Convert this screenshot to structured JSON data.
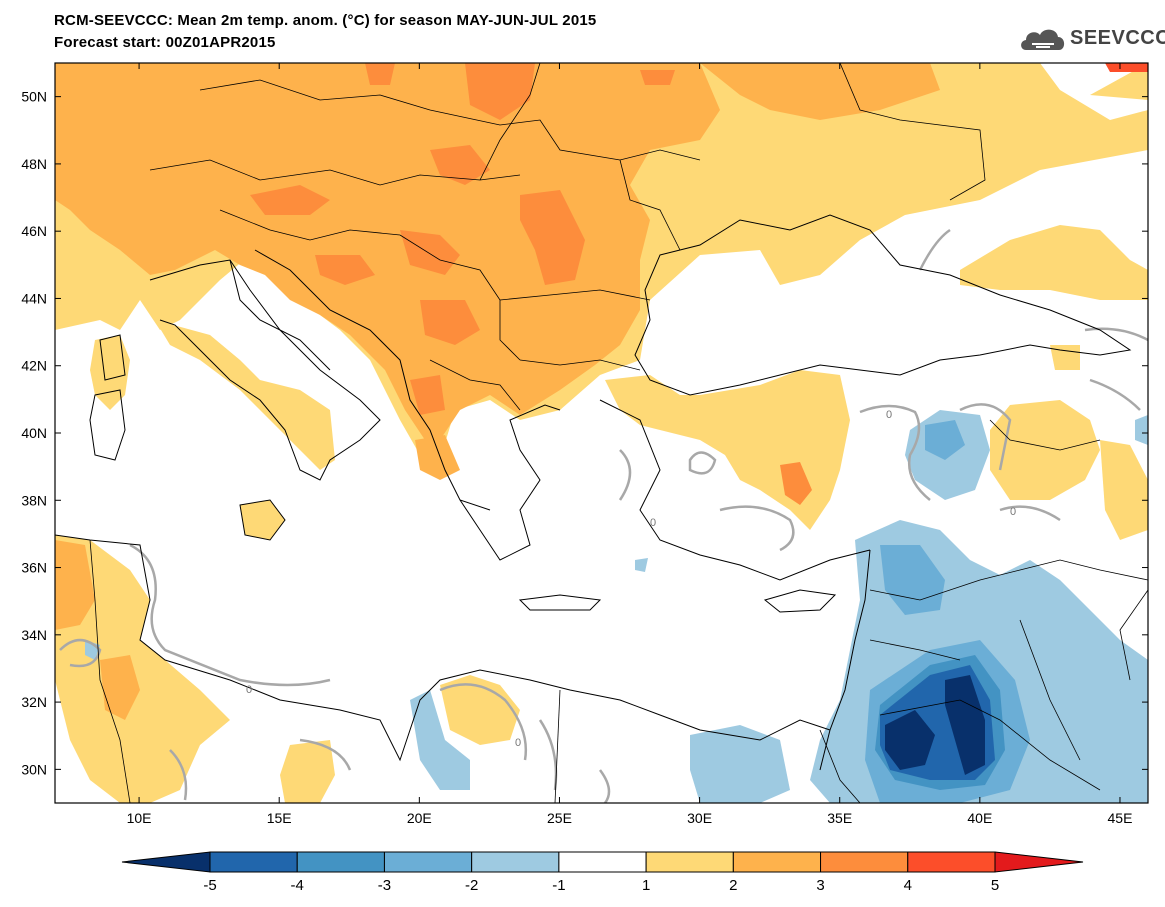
{
  "header": {
    "title_line1": "RCM-SEEVCCC: Mean 2m temp. anom. (°C) for season MAY-JUN-JUL 2015",
    "title_line2": "Forecast start: 00Z01APR2015"
  },
  "logo": {
    "text": "SEEVCCC",
    "icon": "cloud-icon"
  },
  "map": {
    "lon_range": [
      7,
      46
    ],
    "lat_range": [
      29,
      51
    ],
    "lon_ticks": [
      "10E",
      "15E",
      "20E",
      "25E",
      "30E",
      "35E",
      "40E",
      "45E"
    ],
    "lon_values": [
      10,
      15,
      20,
      25,
      30,
      35,
      40,
      45
    ],
    "lat_ticks": [
      "30N",
      "32N",
      "34N",
      "36N",
      "38N",
      "40N",
      "42N",
      "44N",
      "46N",
      "48N",
      "50N"
    ],
    "lat_values": [
      30,
      32,
      34,
      36,
      38,
      40,
      42,
      44,
      46,
      48,
      50
    ],
    "contour_label": "0"
  },
  "colorbar": {
    "labels": [
      "-5",
      "-4",
      "-3",
      "-2",
      "-1",
      "1",
      "2",
      "3",
      "4",
      "5"
    ],
    "colors": [
      "#08306b",
      "#2166ac",
      "#4393c3",
      "#6baed6",
      "#9ecae1",
      "#ffffff",
      "#fed976",
      "#feb24c",
      "#fd8d3c",
      "#fc4e2a",
      "#e31a1c"
    ]
  }
}
